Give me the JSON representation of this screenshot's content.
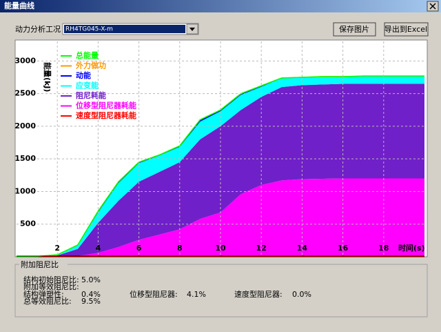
{
  "window": {
    "title": "能量曲线"
  },
  "controls": {
    "case_label": "动力分析工况",
    "case_value": "RH4TG045-X-m",
    "save_button": "保存图片",
    "export_button": "导出到Excel"
  },
  "chart_data": {
    "type": "area",
    "ylabel": "能量(kJ)",
    "xlabel": "时间(s)",
    "x": [
      0,
      1,
      2,
      3,
      4,
      5,
      6,
      7,
      8,
      9,
      10,
      11,
      12,
      13,
      14,
      15,
      16,
      17,
      18,
      19,
      20
    ],
    "xlim": [
      0,
      20
    ],
    "xticks": [
      2,
      4,
      6,
      8,
      10,
      12,
      14,
      16,
      18
    ],
    "ylim": [
      0,
      3300
    ],
    "yticks": [
      500,
      1000,
      1500,
      2000,
      2500,
      3000
    ],
    "grid": true,
    "series": [
      {
        "name": "位移型阻尼器耗能",
        "color": "#ff00ff",
        "stacked": true,
        "values": [
          0,
          0,
          0,
          10,
          60,
          150,
          260,
          340,
          420,
          580,
          680,
          960,
          1100,
          1170,
          1190,
          1195,
          1200,
          1200,
          1200,
          1200,
          1200
        ]
      },
      {
        "name": "阻尼耗能",
        "color": "#7020c8",
        "stacked": true,
        "values": [
          0,
          3,
          20,
          110,
          460,
          710,
          890,
          960,
          1030,
          1220,
          1320,
          1290,
          1350,
          1430,
          1440,
          1445,
          1450,
          1450,
          1450,
          1450,
          1450
        ]
      },
      {
        "name": "应变能",
        "color": "#00ffff",
        "stacked": true,
        "values": [
          0,
          2,
          8,
          50,
          160,
          270,
          285,
          250,
          235,
          270,
          230,
          230,
          155,
          135,
          118,
          118,
          109,
          119,
          119,
          119,
          119
        ]
      },
      {
        "name": "动能",
        "color": "#0000ff",
        "stacked": true,
        "values": [
          0,
          0,
          2,
          10,
          20,
          20,
          15,
          10,
          15,
          30,
          20,
          20,
          15,
          5,
          2,
          2,
          1,
          1,
          1,
          1,
          1
        ]
      },
      {
        "name": "速度型阻尼器耗能",
        "color": "#ff0000",
        "stacked": false,
        "values": [
          0,
          0,
          0,
          0,
          0,
          0,
          0,
          0,
          0,
          0,
          0,
          0,
          0,
          0,
          0,
          0,
          0,
          0,
          0,
          0,
          0
        ]
      },
      {
        "name": "外力做功",
        "color": "#ff9900",
        "stacked": false,
        "values": [
          0,
          5,
          30,
          180,
          700,
          1150,
          1450,
          1560,
          1700,
          2100,
          2250,
          2500,
          2620,
          2740,
          2750,
          2760,
          2760,
          2770,
          2770,
          2770,
          2770
        ]
      },
      {
        "name": "总能量",
        "color": "#00ff00",
        "stacked": false,
        "values": [
          0,
          5,
          30,
          180,
          700,
          1150,
          1450,
          1560,
          1700,
          2100,
          2250,
          2500,
          2620,
          2740,
          2750,
          2760,
          2760,
          2770,
          2770,
          2770,
          2770
        ]
      }
    ],
    "legend_order": [
      6,
      5,
      3,
      2,
      1,
      0,
      4
    ]
  },
  "damping": {
    "title": "附加阻尼比",
    "initial_label": "结构初始阻尼比:",
    "initial_value": "5.0%",
    "additional_label": "附加等效阻尼比:",
    "plastic_label": "结构弹塑性:",
    "plastic_value": "0.4%",
    "disp_label": "位移型阻尼器:",
    "disp_value": "4.1%",
    "vel_label": "速度型阻尼器:",
    "vel_value": "0.0%",
    "total_label": "总等效阻尼比:",
    "total_value": "9.5%"
  }
}
